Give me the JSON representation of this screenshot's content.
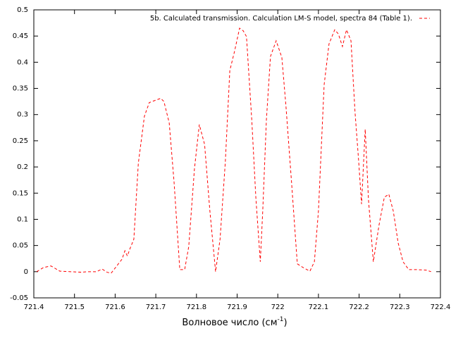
{
  "chart_data": {
    "type": "line",
    "x_label": {
      "text": "Волновое число (см",
      "superscript": "-1",
      "suffix": ")"
    },
    "xlim": [
      721.4,
      722.4
    ],
    "xticks": [
      721.4,
      721.5,
      721.6,
      721.7,
      721.8,
      721.9,
      722,
      722.1,
      722.2,
      722.3,
      722.4
    ],
    "ylim": [
      -0.05,
      0.5
    ],
    "yticks": [
      -0.05,
      0,
      0.05,
      0.1,
      0.15,
      0.2,
      0.25,
      0.3,
      0.35,
      0.4,
      0.45,
      0.5
    ],
    "legend": "top-right",
    "dashed": true,
    "series": [
      {
        "name": "5b. Calculated transmission. Calculation LM-S model, spectra 84 (Table 1).",
        "color": "#ff0000",
        "x": [
          721.407,
          721.424,
          721.442,
          721.464,
          721.49,
          721.516,
          721.533,
          721.554,
          721.568,
          721.58,
          721.59,
          721.603,
          721.617,
          721.624,
          721.63,
          721.637,
          721.646,
          721.657,
          721.672,
          721.684,
          721.698,
          721.712,
          721.72,
          721.733,
          721.745,
          721.759,
          721.771,
          721.781,
          721.795,
          721.807,
          721.82,
          721.833,
          721.847,
          721.858,
          721.871,
          721.882,
          721.894,
          721.906,
          721.915,
          721.923,
          721.936,
          721.946,
          721.957,
          721.963,
          721.972,
          721.982,
          721.996,
          722.01,
          722.02,
          722.034,
          722.048,
          722.062,
          722.079,
          722.09,
          722.1,
          722.114,
          722.126,
          722.14,
          722.149,
          722.159,
          722.169,
          722.18,
          722.19,
          722.199,
          722.206,
          722.215,
          722.223,
          722.235,
          722.249,
          722.262,
          722.273,
          722.284,
          722.296,
          722.308,
          722.322,
          722.339,
          722.365,
          722.377
        ],
        "values": [
          0,
          0.008,
          0.011,
          0.001,
          0,
          -0.001,
          0,
          0,
          0.005,
          -0.001,
          -0.003,
          0.01,
          0.024,
          0.04,
          0.03,
          0.045,
          0.062,
          0.207,
          0.297,
          0.323,
          0.327,
          0.331,
          0.325,
          0.284,
          0.17,
          0.004,
          0.004,
          0.048,
          0.196,
          0.281,
          0.243,
          0.116,
          0,
          0.062,
          0.21,
          0.384,
          0.422,
          0.465,
          0.46,
          0.449,
          0.29,
          0.142,
          0.019,
          0.116,
          0.29,
          0.411,
          0.441,
          0.409,
          0.317,
          0.169,
          0.015,
          0.008,
          0.001,
          0.019,
          0.116,
          0.357,
          0.435,
          0.462,
          0.454,
          0.43,
          0.462,
          0.441,
          0.304,
          0.21,
          0.129,
          0.272,
          0.138,
          0.019,
          0.089,
          0.142,
          0.148,
          0.116,
          0.055,
          0.019,
          0.004,
          0.004,
          0.003,
          0
        ]
      }
    ]
  }
}
